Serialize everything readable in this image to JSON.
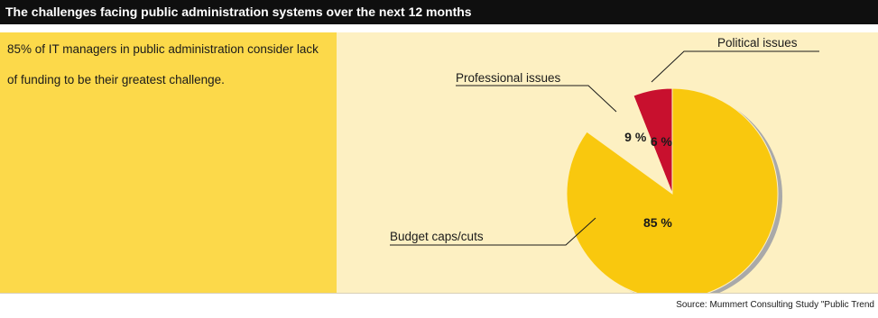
{
  "header": {
    "title": "The challenges facing public administration systems over the next 12 months"
  },
  "note": {
    "text": "85% of IT managers in public administration consider lack of funding to be their greatest challenge."
  },
  "source": {
    "text": "Source: Mummert Consulting Study \"Public Trend"
  },
  "colors": {
    "header_bg": "#0f0f0f",
    "panel_bg": "#fdf0c2",
    "highlight_box": "#fcd94a",
    "budget": "#f9c80e",
    "professional": "#fdf0c2",
    "political": "#c8102e"
  },
  "chart_data": {
    "type": "pie",
    "title": "The challenges facing public administration systems over the next 12 months",
    "slices": [
      {
        "label": "Budget caps/cuts",
        "value": 85,
        "value_label": "85 %",
        "color": "#f9c80e"
      },
      {
        "label": "Professional issues",
        "value": 9,
        "value_label": "9 %",
        "color": "#fdf0c2"
      },
      {
        "label": "Political issues",
        "value": 6,
        "value_label": "6 %",
        "color": "#c8102e"
      }
    ]
  }
}
